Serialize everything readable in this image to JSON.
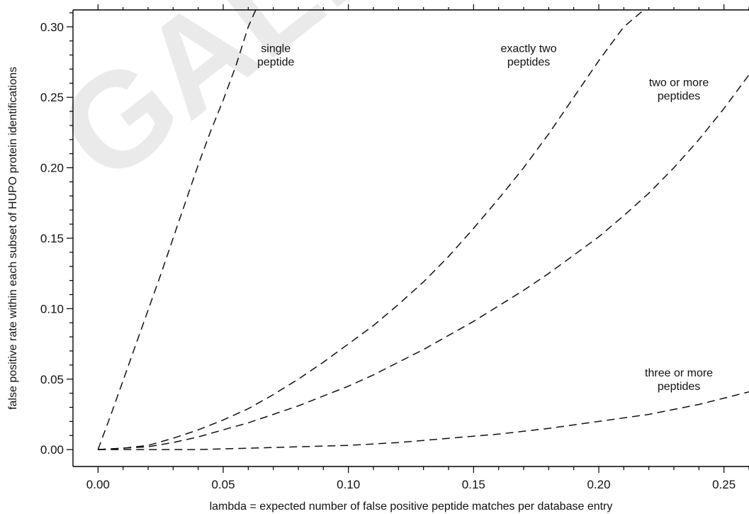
{
  "watermark": "GALLE",
  "chart_data": {
    "type": "line",
    "title": "",
    "xlabel": "lambda  =  expected number of false positive peptide matches per database entry",
    "ylabel": "false positive rate within each subset of HUPO protein identifications",
    "xlim": [
      -0.01,
      0.26
    ],
    "ylim": [
      -0.012,
      0.312
    ],
    "xticks": [
      0.0,
      0.05,
      0.1,
      0.15,
      0.2,
      0.25
    ],
    "xtick_labels": [
      "0.00",
      "0.05",
      "0.10",
      "0.15",
      "0.20",
      "0.25"
    ],
    "yticks": [
      0.0,
      0.05,
      0.1,
      0.15,
      0.2,
      0.25,
      0.3
    ],
    "ytick_labels": [
      "0.00",
      "0.05",
      "0.10",
      "0.15",
      "0.20",
      "0.25",
      "0.30"
    ],
    "grid": false,
    "legend": "none",
    "line_style": "dashed",
    "series": [
      {
        "name": "single peptide",
        "x": [
          0.0,
          0.005,
          0.01,
          0.015,
          0.02,
          0.025,
          0.03,
          0.035,
          0.04,
          0.045,
          0.05,
          0.055,
          0.06,
          0.063
        ],
        "y": [
          0.0,
          0.024,
          0.049,
          0.074,
          0.099,
          0.124,
          0.15,
          0.176,
          0.202,
          0.226,
          0.248,
          0.272,
          0.3,
          0.312
        ]
      },
      {
        "name": "exactly two peptides",
        "x": [
          0.0,
          0.01,
          0.02,
          0.03,
          0.04,
          0.05,
          0.06,
          0.07,
          0.08,
          0.09,
          0.1,
          0.11,
          0.12,
          0.13,
          0.14,
          0.15,
          0.16,
          0.17,
          0.18,
          0.19,
          0.2,
          0.21,
          0.218
        ],
        "y": [
          0.0,
          0.001,
          0.003,
          0.008,
          0.014,
          0.021,
          0.029,
          0.039,
          0.05,
          0.062,
          0.075,
          0.088,
          0.103,
          0.119,
          0.137,
          0.157,
          0.178,
          0.2,
          0.224,
          0.25,
          0.276,
          0.3,
          0.312
        ]
      },
      {
        "name": "two or more peptides",
        "x": [
          0.0,
          0.01,
          0.02,
          0.03,
          0.04,
          0.05,
          0.06,
          0.07,
          0.08,
          0.09,
          0.1,
          0.11,
          0.12,
          0.13,
          0.14,
          0.15,
          0.16,
          0.17,
          0.18,
          0.19,
          0.2,
          0.21,
          0.22,
          0.23,
          0.24,
          0.25,
          0.26
        ],
        "y": [
          0.0,
          0.001,
          0.002,
          0.005,
          0.009,
          0.014,
          0.019,
          0.025,
          0.031,
          0.038,
          0.045,
          0.053,
          0.062,
          0.071,
          0.081,
          0.091,
          0.102,
          0.113,
          0.125,
          0.138,
          0.151,
          0.166,
          0.182,
          0.2,
          0.22,
          0.242,
          0.266
        ]
      },
      {
        "name": "three or more peptides",
        "x": [
          0.0,
          0.02,
          0.04,
          0.06,
          0.08,
          0.1,
          0.12,
          0.14,
          0.16,
          0.18,
          0.2,
          0.22,
          0.24,
          0.26
        ],
        "y": [
          0.0,
          0.0,
          0.0,
          0.001,
          0.002,
          0.003,
          0.005,
          0.008,
          0.011,
          0.015,
          0.02,
          0.025,
          0.032,
          0.041
        ]
      }
    ],
    "annotations": [
      {
        "lines": [
          "single",
          "peptide"
        ],
        "x": 0.071,
        "y": 0.282
      },
      {
        "lines": [
          "exactly two",
          "peptides"
        ],
        "x": 0.172,
        "y": 0.282
      },
      {
        "lines": [
          "two or more",
          "peptides"
        ],
        "x": 0.232,
        "y": 0.258
      },
      {
        "lines": [
          "three or more",
          "peptides"
        ],
        "x": 0.232,
        "y": 0.052
      }
    ]
  }
}
